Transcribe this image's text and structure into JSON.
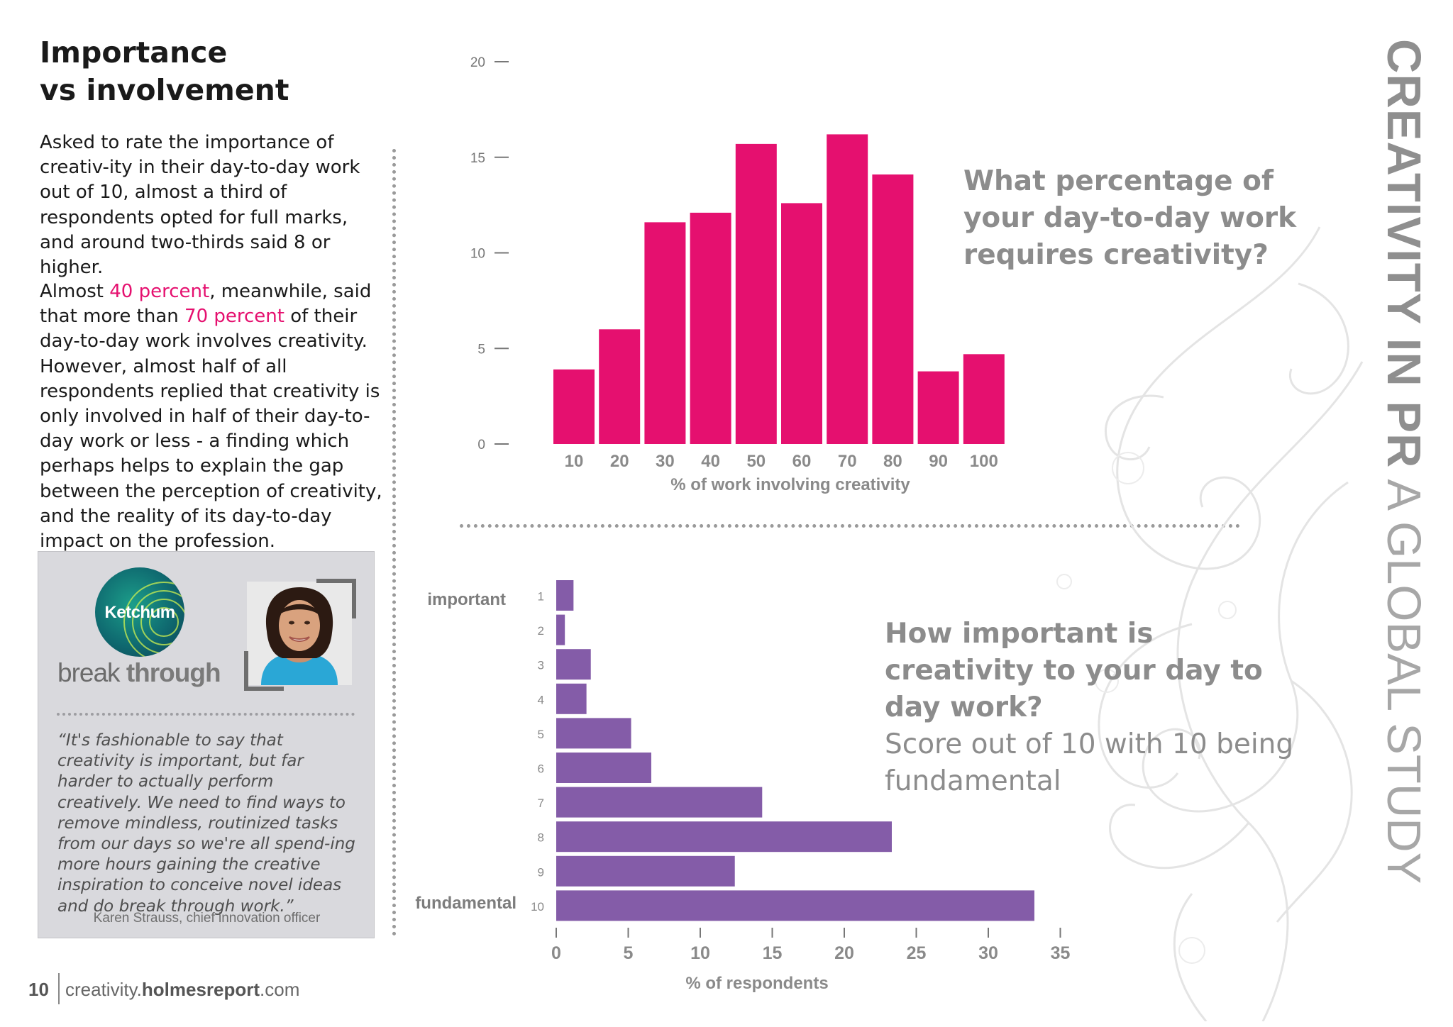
{
  "heading": {
    "line1": "Importance",
    "line2": "vs involvement"
  },
  "body": {
    "para1": "Asked to rate the importance of creativ-ity in their day-to-day work out of 10, almost a third of respondents opted for full marks, and around two-thirds said 8 or higher.",
    "para2_start": "Almost ",
    "para2_hl1": "40 percent",
    "para2_mid": ", meanwhile, said that more than ",
    "para2_hl2": "70 percent",
    "para2_end": " of their day-to-day work involves creativity. However, almost half of all respondents replied that creativity is only involved in half of their day-to-day work or less - a finding which perhaps helps to explain the gap between the perception of creativity, and the reality of its day-to-day impact on the profession."
  },
  "quote_box": {
    "logo_text": "Ketchum",
    "tagline_light": "break",
    "tagline_bold": "through",
    "quote": "“It's fashionable to say that creativity is important, but far harder to actually perform creatively.  We need to find ways to remove mindless, routinized tasks from our days so we're all spend-ing more hours gaining the creative inspiration to conceive novel ideas and do break through work.”",
    "attribution": "Karen Strauss, chief innovation officer"
  },
  "footer": {
    "page": "10",
    "url_light": "creativity.",
    "url_bold": "holmesreport",
    "url_end": ".com"
  },
  "side_title": {
    "bold": "CREATIVITY IN PR",
    "light": "A GLOBAL STUDY"
  },
  "question1": "What percentage of your day-to-day work requires creativity?",
  "question2": {
    "bold": "How important is creativity to your day to day work?",
    "light": "Score out of 10 with 10 being fundamental"
  },
  "colors": {
    "pink": "#e5106f",
    "purple": "#845ca8",
    "grey_text": "#8c8c8c"
  },
  "icons": [
    "ketchum-logo-icon",
    "swirl-decoration-icon"
  ],
  "chart_data": [
    {
      "type": "bar",
      "categories": [
        "10",
        "20",
        "30",
        "40",
        "50",
        "60",
        "70",
        "80",
        "90",
        "100"
      ],
      "values": [
        3.9,
        6,
        11.6,
        12.1,
        15.7,
        12.6,
        16.2,
        14.1,
        3.8,
        4.7
      ],
      "xlabel": "% of work involving creativity",
      "ylabel": "",
      "ylim": [
        0,
        20
      ],
      "yticks": [
        "0",
        "5",
        "10",
        "15",
        "20"
      ],
      "grid": false,
      "color": "#e5106f"
    },
    {
      "type": "bar",
      "orientation": "horizontal",
      "categories": [
        "1",
        "2",
        "3",
        "4",
        "5",
        "6",
        "7",
        "8",
        "9",
        "10"
      ],
      "values": [
        1.2,
        0.6,
        2.4,
        2.1,
        5.2,
        6.6,
        14.3,
        23.3,
        12.4,
        33.2
      ],
      "xlabel": "% of respondents",
      "xlim": [
        0,
        35
      ],
      "xticks": [
        "0",
        "5",
        "10",
        "15",
        "20",
        "25",
        "30",
        "35"
      ],
      "end_labels": {
        "top": "important",
        "bottom": "fundamental"
      },
      "grid": false,
      "color": "#845ca8"
    }
  ]
}
